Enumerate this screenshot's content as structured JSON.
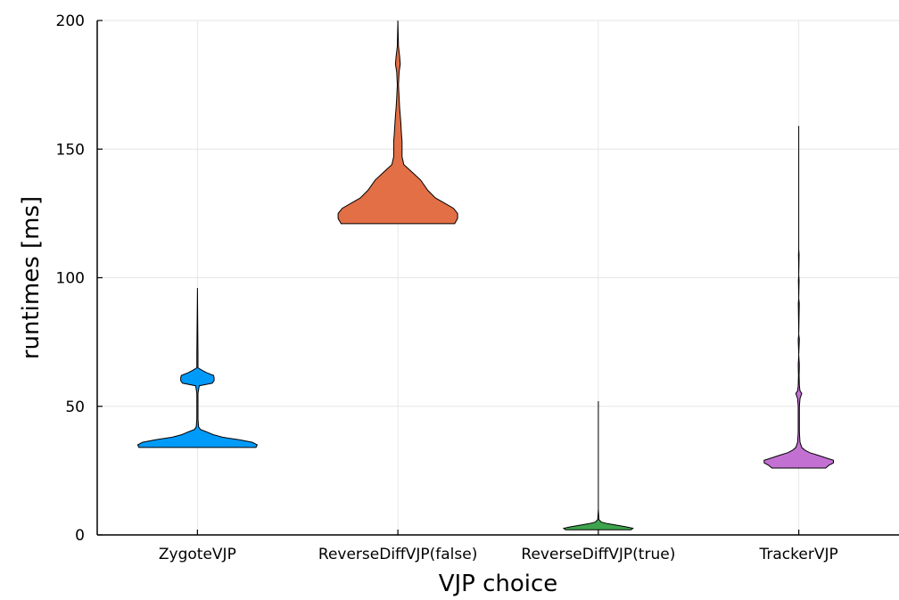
{
  "chart_data": {
    "type": "violin",
    "title": "",
    "xlabel": "VJP choice",
    "ylabel": "runtimes [ms]",
    "ylim": [
      0,
      200
    ],
    "yticks": [
      0,
      50,
      100,
      150,
      200
    ],
    "grid": true,
    "legend": "none",
    "categories": [
      "ZygoteVJP",
      "ReverseDiffVJP(false)",
      "ReverseDiffVJP(true)",
      "TrackerVJP"
    ],
    "series": [
      {
        "color": "#009af9",
        "min": 34,
        "max": 96,
        "density": [
          [
            34,
            0.98
          ],
          [
            35,
            1.0
          ],
          [
            36,
            0.92
          ],
          [
            37,
            0.7
          ],
          [
            38,
            0.42
          ],
          [
            39,
            0.26
          ],
          [
            40,
            0.16
          ],
          [
            41,
            0.05
          ],
          [
            42,
            0.02
          ],
          [
            45,
            0.01
          ],
          [
            55,
            0.01
          ],
          [
            58,
            0.03
          ],
          [
            59,
            0.25
          ],
          [
            60,
            0.28
          ],
          [
            61,
            0.28
          ],
          [
            62,
            0.27
          ],
          [
            63,
            0.16
          ],
          [
            64,
            0.08
          ],
          [
            65,
            0.01
          ],
          [
            70,
            0.01
          ],
          [
            96,
            0.0
          ]
        ]
      },
      {
        "color": "#e26f46",
        "min": 121,
        "max": 200,
        "density": [
          [
            121,
            0.95
          ],
          [
            123,
            1.0
          ],
          [
            125,
            1.0
          ],
          [
            127,
            0.93
          ],
          [
            129,
            0.78
          ],
          [
            131,
            0.63
          ],
          [
            134,
            0.5
          ],
          [
            138,
            0.38
          ],
          [
            141,
            0.24
          ],
          [
            144,
            0.1
          ],
          [
            147,
            0.07
          ],
          [
            150,
            0.07
          ],
          [
            153,
            0.07
          ],
          [
            156,
            0.06
          ],
          [
            160,
            0.05
          ],
          [
            163,
            0.04
          ],
          [
            166,
            0.03
          ],
          [
            170,
            0.02
          ],
          [
            175,
            0.01
          ],
          [
            180,
            0.02
          ],
          [
            183,
            0.04
          ],
          [
            186,
            0.03
          ],
          [
            190,
            0.01
          ],
          [
            200,
            0.0
          ]
        ]
      },
      {
        "color": "#3da44d",
        "min": 2,
        "max": 52,
        "density": [
          [
            2,
            0.55
          ],
          [
            2.6,
            0.58
          ],
          [
            3.2,
            0.45
          ],
          [
            3.8,
            0.3
          ],
          [
            4.4,
            0.15
          ],
          [
            5,
            0.05
          ],
          [
            6,
            0.01
          ],
          [
            10,
            0.0
          ],
          [
            52,
            0.0
          ]
        ]
      },
      {
        "color": "#c271d2",
        "min": 26,
        "max": 159,
        "density": [
          [
            26,
            0.45
          ],
          [
            27,
            0.5
          ],
          [
            28,
            0.58
          ],
          [
            29,
            0.58
          ],
          [
            30,
            0.45
          ],
          [
            31,
            0.32
          ],
          [
            32,
            0.18
          ],
          [
            33,
            0.1
          ],
          [
            34,
            0.05
          ],
          [
            36,
            0.02
          ],
          [
            40,
            0.01
          ],
          [
            50,
            0.01
          ],
          [
            53,
            0.02
          ],
          [
            55,
            0.05
          ],
          [
            56,
            0.02
          ],
          [
            58,
            0.01
          ],
          [
            62,
            0.005
          ],
          [
            66,
            0.01
          ],
          [
            70,
            0.0
          ],
          [
            76,
            0.01
          ],
          [
            78,
            0.0
          ],
          [
            90,
            0.008
          ],
          [
            92,
            0.0
          ],
          [
            99,
            0.006
          ],
          [
            101,
            0.0
          ],
          [
            109,
            0.005
          ],
          [
            111,
            0.0
          ],
          [
            159,
            0.0
          ]
        ]
      }
    ]
  }
}
